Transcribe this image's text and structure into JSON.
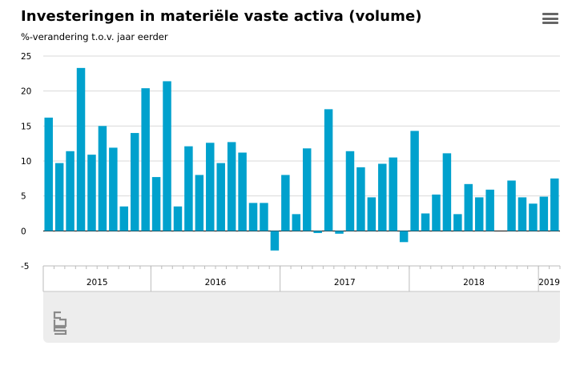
{
  "header": {
    "title": "Investeringen in materiële vaste activa (volume)",
    "subtitle": "%-verandering t.o.v. jaar eerder"
  },
  "icons": {
    "menu": "hamburger-menu-icon",
    "logo": "cbs-logo-icon"
  },
  "colors": {
    "bar": "#00a1cd",
    "grid": "#d9d9d9",
    "axis": "#bbbbbb",
    "panel": "#ededed"
  },
  "chart_data": {
    "type": "bar",
    "title": "Investeringen in materiële vaste activa (volume)",
    "subtitle": "%-verandering t.o.v. jaar eerder",
    "ylim": [
      -5,
      25
    ],
    "yticks": [
      25,
      20,
      15,
      10,
      5,
      0,
      -5
    ],
    "grid": true,
    "values": [
      16.2,
      9.7,
      11.4,
      23.3,
      10.9,
      15.0,
      11.9,
      3.5,
      14.0,
      20.4,
      7.7,
      21.4,
      3.5,
      12.1,
      8.0,
      12.6,
      9.7,
      12.7,
      11.2,
      4.0,
      4.0,
      -2.8,
      8.0,
      2.4,
      11.8,
      -0.3,
      17.4,
      -0.4,
      11.4,
      9.1,
      4.8,
      9.6,
      10.5,
      -1.6,
      14.3,
      2.5,
      5.2,
      11.1,
      2.4,
      6.7,
      4.8,
      5.9,
      null,
      7.2,
      4.8,
      3.9,
      4.9,
      7.5
    ],
    "years": [
      {
        "label": "2015",
        "start": 0,
        "count": 10
      },
      {
        "label": "2016",
        "start": 10,
        "count": 12
      },
      {
        "label": "2017",
        "start": 22,
        "count": 12
      },
      {
        "label": "2018",
        "start": 34,
        "count": 12
      },
      {
        "label": "2019",
        "start": 46,
        "count": 2
      }
    ]
  }
}
